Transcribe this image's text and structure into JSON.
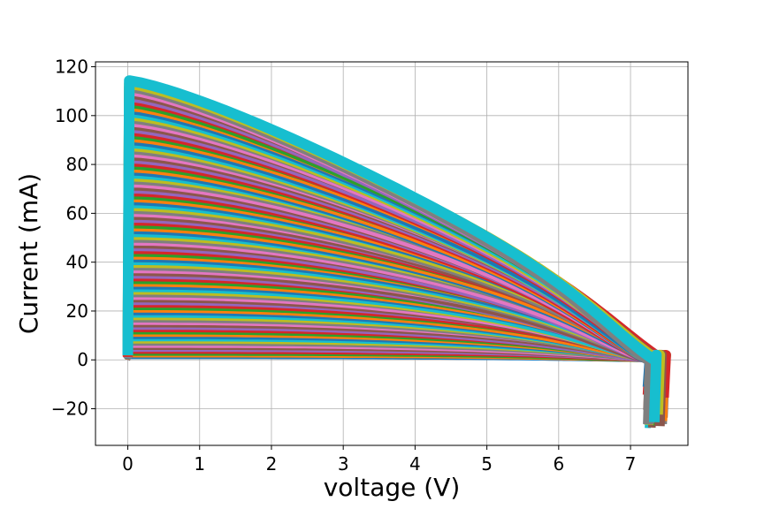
{
  "chart_data": {
    "type": "line",
    "title": "",
    "xlabel": "voltage (V)",
    "ylabel": "Current (mA)",
    "xlim": [
      -0.45,
      7.8
    ],
    "ylim": [
      -35,
      122
    ],
    "xticks": [
      0,
      1,
      2,
      3,
      4,
      5,
      6,
      7
    ],
    "yticks": [
      -20,
      0,
      20,
      40,
      60,
      80,
      100,
      120
    ],
    "xtick_labels": [
      "0",
      "1",
      "2",
      "3",
      "4",
      "5",
      "6",
      "7"
    ],
    "ytick_labels": [
      "−20",
      "0",
      "20",
      "40",
      "60",
      "80",
      "100",
      "120"
    ],
    "grid": true,
    "legend": "none",
    "palette": [
      "#1f77b4",
      "#ff7f0e",
      "#2ca02c",
      "#d62728",
      "#9467bd",
      "#8c564b",
      "#e377c2",
      "#7f7f7f",
      "#bcbd22",
      "#17becf"
    ],
    "family_description_note_free": true,
    "curve_family": {
      "count": 100,
      "isc_range_mA": [
        1,
        115
      ],
      "voc_range_V": [
        7.2,
        7.45
      ],
      "x_start_V": 0.0,
      "min_current_mA": -28
    }
  }
}
